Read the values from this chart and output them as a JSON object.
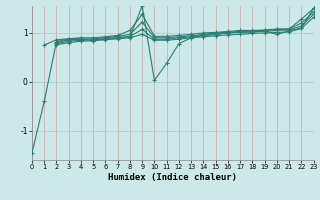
{
  "xlabel": "Humidex (Indice chaleur)",
  "bg_color": "#cce8e8",
  "line_color": "#2e7d72",
  "grid_color_v": "#c8a8a8",
  "grid_color_h": "#a8c8c8",
  "xlim": [
    0,
    23
  ],
  "ylim": [
    -1.6,
    1.55
  ],
  "yticks": [
    -1,
    0,
    1
  ],
  "xticks": [
    0,
    1,
    2,
    3,
    4,
    5,
    6,
    7,
    8,
    9,
    10,
    11,
    12,
    13,
    14,
    15,
    16,
    17,
    18,
    19,
    20,
    21,
    22,
    23
  ],
  "lines": [
    {
      "x": [
        0,
        1,
        2,
        3,
        4,
        5,
        6,
        7,
        8,
        9,
        10,
        11,
        12,
        13,
        14,
        15,
        16,
        17,
        18,
        19,
        20,
        21,
        22,
        23
      ],
      "y": [
        -1.45,
        -0.4,
        0.82,
        0.88,
        0.88,
        0.84,
        0.88,
        0.9,
        0.92,
        1.55,
        0.03,
        0.38,
        0.78,
        0.9,
        0.95,
        0.97,
        1.0,
        1.02,
        1.02,
        1.04,
        0.97,
        1.04,
        1.1,
        1.5
      ]
    },
    {
      "x": [
        1,
        2,
        3,
        4,
        5,
        6,
        7,
        8,
        9,
        10,
        11,
        12,
        13,
        14,
        15,
        16,
        17,
        18,
        19,
        20,
        21,
        22,
        23
      ],
      "y": [
        0.75,
        0.86,
        0.88,
        0.9,
        0.9,
        0.92,
        0.95,
        1.05,
        1.38,
        0.93,
        0.93,
        0.95,
        0.97,
        1.0,
        1.01,
        1.03,
        1.05,
        1.05,
        1.06,
        1.08,
        1.08,
        1.28,
        1.5
      ]
    },
    {
      "x": [
        2,
        3,
        4,
        5,
        6,
        7,
        8,
        9,
        10,
        11,
        12,
        13,
        14,
        15,
        16,
        17,
        18,
        19,
        20,
        21,
        22,
        23
      ],
      "y": [
        0.8,
        0.86,
        0.87,
        0.88,
        0.9,
        0.93,
        0.97,
        1.22,
        0.9,
        0.9,
        0.92,
        0.94,
        0.97,
        1.0,
        1.01,
        1.03,
        1.04,
        1.05,
        1.07,
        1.08,
        1.2,
        1.43
      ]
    },
    {
      "x": [
        2,
        3,
        4,
        5,
        6,
        7,
        8,
        9,
        10,
        11,
        12,
        13,
        14,
        15,
        16,
        17,
        18,
        19,
        20,
        21,
        22,
        23
      ],
      "y": [
        0.78,
        0.83,
        0.85,
        0.86,
        0.88,
        0.9,
        0.93,
        1.07,
        0.87,
        0.87,
        0.9,
        0.92,
        0.95,
        0.97,
        1.0,
        1.01,
        1.02,
        1.03,
        1.05,
        1.06,
        1.14,
        1.38
      ]
    },
    {
      "x": [
        2,
        3,
        4,
        5,
        6,
        7,
        8,
        9,
        10,
        11,
        12,
        13,
        14,
        15,
        16,
        17,
        18,
        19,
        20,
        21,
        22,
        23
      ],
      "y": [
        0.76,
        0.8,
        0.83,
        0.84,
        0.86,
        0.88,
        0.9,
        0.97,
        0.85,
        0.85,
        0.87,
        0.9,
        0.92,
        0.94,
        0.96,
        0.97,
        0.99,
        1.0,
        1.01,
        1.02,
        1.09,
        1.32
      ]
    }
  ]
}
